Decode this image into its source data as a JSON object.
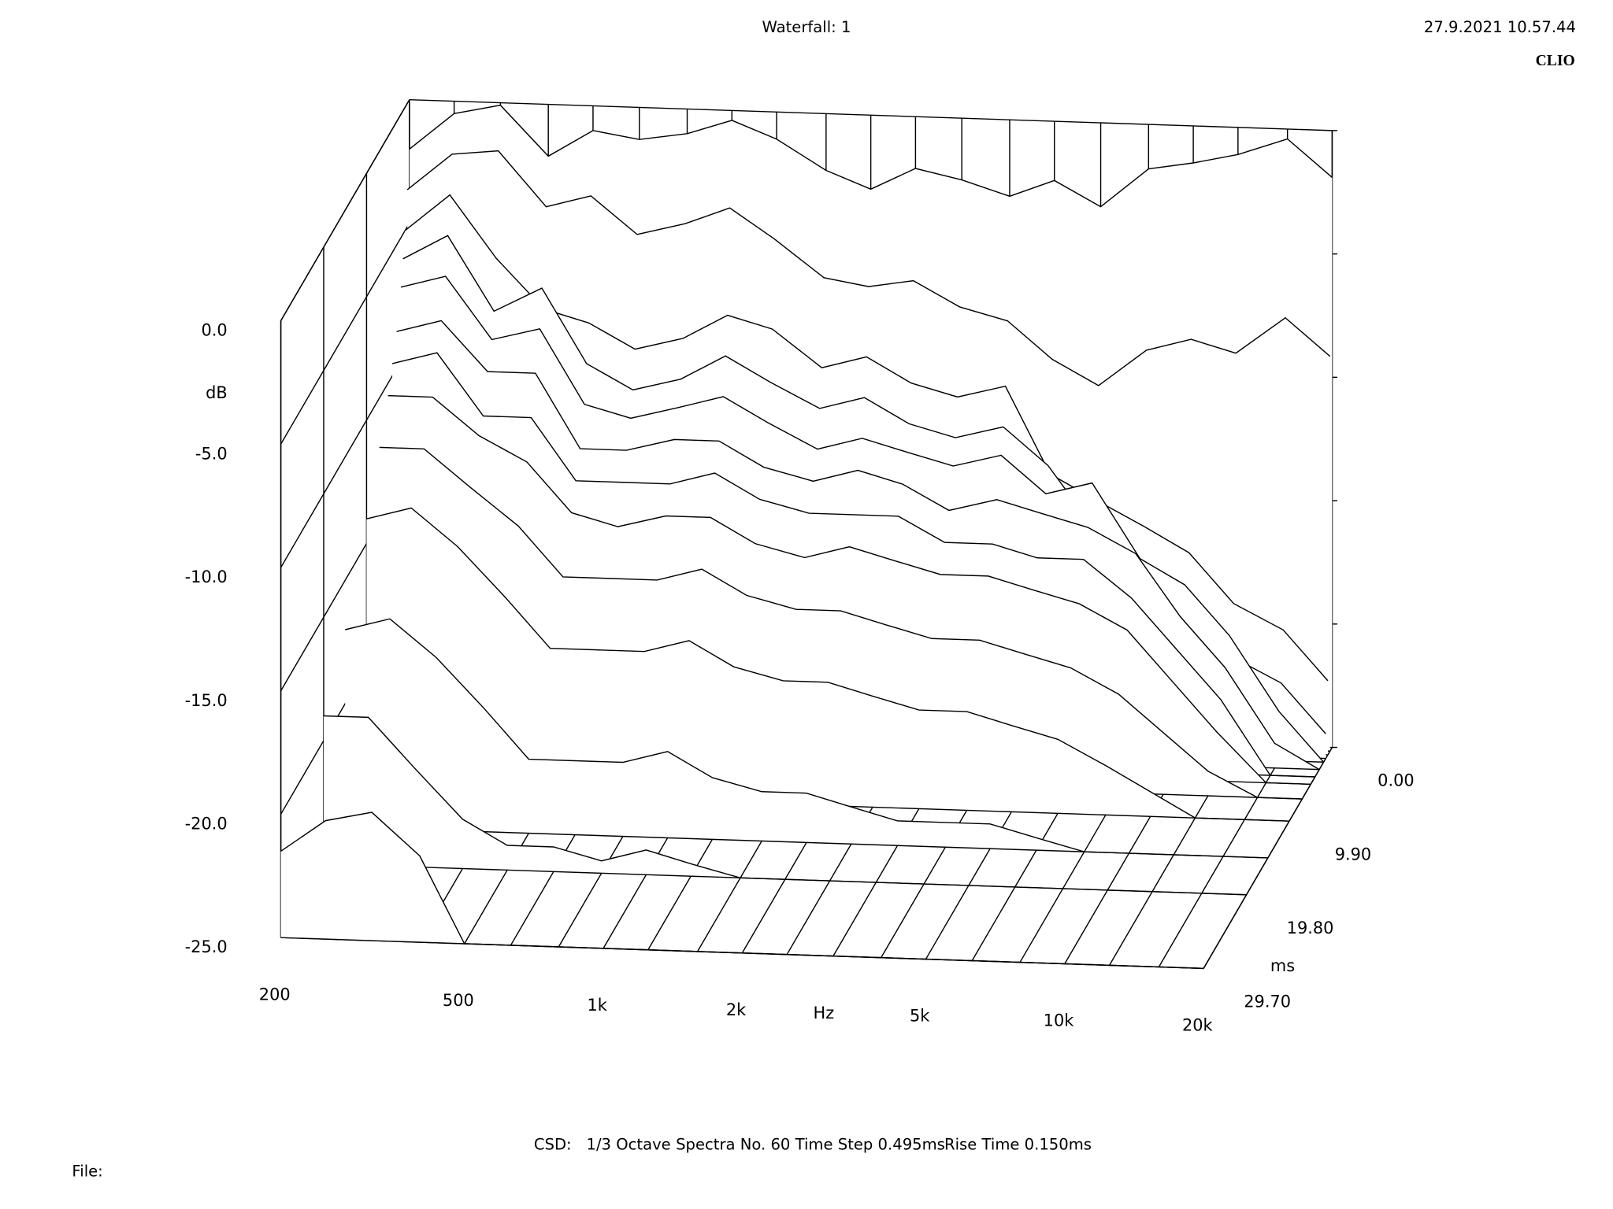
{
  "chart_data": {
    "type": "waterfall",
    "title": "Waterfall: 1",
    "date": "27.9.2021 10.57.44",
    "logo": "CLIO",
    "notes": [
      "CSD:",
      "1/3 Octave",
      "Spectra No. 60",
      "Time Step 0.495ms",
      "Rise Time 0.150ms"
    ],
    "file_label": "File:",
    "xlabel": "Hz",
    "ylabel": "dB",
    "zlabel": "ms",
    "xscale": "log",
    "xlim": [
      200,
      20000
    ],
    "xticks": [
      200,
      500,
      {
        "value": 1000,
        "label": "1k"
      },
      {
        "value": 2000,
        "label": "2k"
      },
      {
        "value": 5000,
        "label": "5k"
      },
      {
        "value": 10000,
        "label": "10k"
      },
      {
        "value": 20000,
        "label": "20k"
      }
    ],
    "ylim": [
      -25,
      0
    ],
    "yticks": [
      {
        "value": 0,
        "label": "0.0"
      },
      {
        "value": -5,
        "label": "-5.0"
      },
      {
        "value": -10,
        "label": "-10.0"
      },
      {
        "value": -15,
        "label": "-15.0"
      },
      {
        "value": -20,
        "label": "-20.0"
      },
      {
        "value": -25,
        "label": "-25.0"
      }
    ],
    "zlim": [
      0,
      29.7
    ],
    "zticks": [
      {
        "value": 0,
        "label": "0.00"
      },
      {
        "value": 9.9,
        "label": "9.90"
      },
      {
        "value": 19.8,
        "label": "19.80"
      },
      {
        "value": 29.7,
        "label": "29.70"
      }
    ],
    "color": "#000000",
    "x": [
      200,
      250,
      315,
      400,
      500,
      630,
      800,
      1000,
      1250,
      1600,
      2000,
      2500,
      3150,
      4000,
      5000,
      6300,
      8000,
      10000,
      12500,
      16000,
      20000
    ],
    "series": [
      {
        "time": 0,
        "values": [
          -2,
          -0.5,
          -0.1,
          -2.1,
          -1.0,
          -1.3,
          -1.0,
          -0.4,
          -1.1,
          -2.3,
          -3.0,
          -2.1,
          -2.5,
          -3.1,
          -2.4,
          -3.4,
          -1.8,
          -1.5,
          -1.1,
          -0.4,
          -1.9
        ]
      },
      {
        "time": 0.495,
        "values": [
          -3.5,
          -2,
          -1.8,
          -4,
          -3.5,
          -5,
          -4.5,
          -3.8,
          -5,
          -6.5,
          -6.8,
          -6.5,
          -7.5,
          -8,
          -9.5,
          -10.5,
          -9,
          -8.5,
          -9,
          -7.5,
          -9
        ]
      },
      {
        "time": 0.99,
        "values": [
          -5,
          -3.5,
          -6,
          -8,
          -8.5,
          -9.5,
          -9,
          -8,
          -8.5,
          -10,
          -9.5,
          -10.5,
          -11,
          -10.5,
          -14,
          -15,
          -16,
          -17,
          -19,
          -20,
          -22
        ]
      },
      {
        "time": 1.485,
        "values": [
          -6,
          -5,
          -8,
          -7,
          -10,
          -11,
          -10.5,
          -9.5,
          -10.5,
          -11.5,
          -11,
          -12,
          -12.5,
          -12,
          -13.5,
          -16,
          -18,
          -19,
          -21,
          -22,
          -24
        ]
      },
      {
        "time": 1.98,
        "values": [
          -7,
          -6.5,
          -9,
          -8.5,
          -11.5,
          -12,
          -11.5,
          -11,
          -12,
          -13,
          -12.5,
          -13,
          -13.5,
          -13,
          -14.5,
          -14,
          -17,
          -18,
          -20,
          -23,
          -25
        ]
      },
      {
        "time": 2.97,
        "values": [
          -8.5,
          -8,
          -10,
          -10,
          -13,
          -13,
          -12.5,
          -12.5,
          -13.5,
          -14,
          -13.5,
          -14,
          -15,
          -14.5,
          -15,
          -15.5,
          -16.5,
          -19,
          -21,
          -24,
          -25
        ]
      },
      {
        "time": 3.96,
        "values": [
          -9.5,
          -9,
          -11.5,
          -11.5,
          -14,
          -14,
          -14,
          -13.5,
          -14.5,
          -15,
          -15,
          -15,
          -16,
          -16,
          -16.5,
          -16.5,
          -18,
          -20,
          -22,
          -25,
          -25
        ]
      },
      {
        "time": 4.95,
        "values": [
          -10.5,
          -10.5,
          -12,
          -13,
          -15,
          -15.5,
          -15,
          -15,
          -16,
          -16.5,
          -16,
          -16.5,
          -17,
          -17,
          -17.5,
          -18,
          -19,
          -21,
          -23,
          -25,
          -25
        ]
      },
      {
        "time": 6.93,
        "values": [
          -12,
          -12,
          -13.5,
          -15,
          -17,
          -17,
          -17,
          -16.5,
          -17.5,
          -18,
          -18,
          -18.5,
          -19,
          -19,
          -19.5,
          -20,
          -21,
          -22.5,
          -24,
          -25,
          -25
        ]
      },
      {
        "time": 9.9,
        "values": [
          -14,
          -13.5,
          -15,
          -17,
          -19,
          -19,
          -19,
          -18.5,
          -19.5,
          -20,
          -20,
          -20.5,
          -21,
          -21,
          -21.5,
          -22,
          -23,
          -24,
          -25,
          -25,
          -25
        ]
      },
      {
        "time": 14.85,
        "values": [
          -17,
          -16.5,
          -18,
          -20,
          -22,
          -22,
          -22,
          -21.5,
          -22.5,
          -23,
          -23,
          -23.5,
          -24,
          -24,
          -24,
          -24.5,
          -25,
          -25,
          -25,
          -25,
          -25
        ]
      },
      {
        "time": 19.8,
        "values": [
          -19,
          -19,
          -21,
          -23,
          -24,
          -24,
          -24.5,
          -24,
          -24.5,
          -25,
          -25,
          -25,
          -25,
          -25,
          -25,
          -25,
          -25,
          -25,
          -25,
          -25,
          -25
        ]
      },
      {
        "time": 29.7,
        "values": [
          -21.5,
          -20.2,
          -19.8,
          -21.5,
          -25,
          -25,
          -25,
          -25,
          -25,
          -25,
          -25,
          -25,
          -25,
          -25,
          -25,
          -25,
          -25,
          -25,
          -25,
          -25,
          -25
        ]
      }
    ]
  }
}
